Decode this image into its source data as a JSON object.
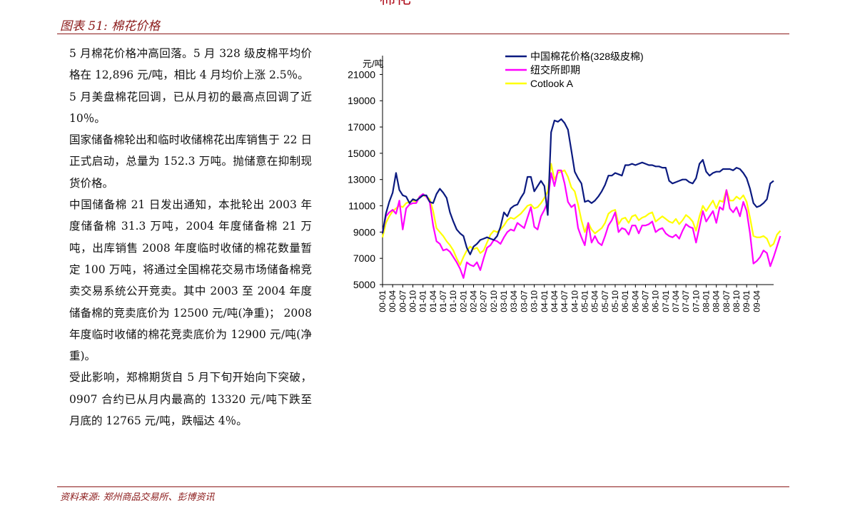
{
  "header_clip": "棉花",
  "figure_title": "图表 51:  棉花价格",
  "source": "资料来源:  郑州商品交易所、彭博资讯",
  "paragraphs": [
    "5 月棉花价格冲高回落。5 月 328 级皮棉平均价格在 12,896 元/吨，相比 4 月均价上涨 2.5％。",
    "5 月美盘棉花回调，已从月初的最高点回调了近 10％。",
    "国家储备棉轮出和临时收储棉花出库销售于 22 日正式启动，总量为 152.3 万吨。抛储意在抑制现货价格。",
    "中国储备棉 21 日发出通知，本批轮出 2003 年度储备棉 31.3 万吨，2004 年度储备棉 21 万吨，出库销售 2008 年度临时收储的棉花数量暂定 100 万吨，将通过全国棉花交易市场储备棉竞卖交易系统公开竞卖。其中 2003 至 2004 年度储备棉的竞卖底价为 12500 元/吨(净重)； 2008 年度临时收储的棉花竞卖底价为 12900 元/吨(净重)。",
    "受此影响，郑棉期货自 5 月下旬开始向下突破，0907 合约已从月内最高的 13320 元/吨下跌至月底的 12765 元/吨，跌幅达 4％。"
  ],
  "chart_data": {
    "type": "line",
    "ylabel": "元/吨",
    "xlabel": "",
    "ylim": [
      5000,
      22000
    ],
    "yticks": [
      5000,
      7000,
      9000,
      11000,
      13000,
      15000,
      17000,
      19000,
      21000
    ],
    "x_tick_labels": [
      "00-01",
      "00-04",
      "00-07",
      "00-10",
      "01-01",
      "01-04",
      "01-07",
      "01-10",
      "02-01",
      "02-04",
      "02-07",
      "02-10",
      "03-01",
      "03-04",
      "03-07",
      "03-10",
      "04-01",
      "04-04",
      "04-07",
      "04-10",
      "05-01",
      "05-04",
      "05-07",
      "05-10",
      "06-01",
      "06-04",
      "06-07",
      "06-10",
      "07-01",
      "07-04",
      "07-07",
      "07-10",
      "08-01",
      "08-04",
      "08-07",
      "08-10",
      "09-01",
      "09-04"
    ],
    "x_start": "2000-01",
    "x_end": "2009-05",
    "grid": false,
    "legend_position": "top",
    "series": [
      {
        "name": "中国棉花价格(328级皮棉)",
        "color": "#0b1a80",
        "values": [
          8900,
          10400,
          11300,
          12000,
          13500,
          12200,
          11800,
          11700,
          11200,
          11500,
          11400,
          11600,
          11800,
          11800,
          11300,
          11200,
          11900,
          12300,
          12000,
          11600,
          10500,
          9800,
          9200,
          8900,
          8700,
          7800,
          7300,
          7900,
          8100,
          8400,
          8500,
          8600,
          8500,
          8400,
          8700,
          9400,
          10500,
          10200,
          10800,
          11000,
          11100,
          11600,
          12000,
          13200,
          13200,
          12100,
          12500,
          12900,
          12500,
          10300,
          16600,
          17500,
          17400,
          17600,
          17300,
          16800,
          15200,
          13600,
          13100,
          12700,
          11300,
          11400,
          11200,
          11400,
          11700,
          12100,
          12600,
          13300,
          13300,
          13500,
          13400,
          13300,
          14100,
          14100,
          14200,
          14100,
          14200,
          14300,
          14200,
          14100,
          14100,
          14000,
          14000,
          13900,
          13900,
          12900,
          12700,
          12800,
          12900,
          13000,
          13000,
          12800,
          12700,
          13100,
          14200,
          14500,
          13600,
          13300,
          13500,
          13600,
          13600,
          13800,
          13800,
          13800,
          13700,
          13900,
          13800,
          13500,
          13100,
          12300,
          11200,
          10900,
          11000,
          11200,
          11500,
          12700,
          12900
        ]
      },
      {
        "name": "纽交所即期",
        "color": "#ff00ff",
        "values": [
          9000,
          10200,
          10500,
          10700,
          10400,
          11400,
          9200,
          10800,
          11100,
          11200,
          11200,
          11700,
          11900,
          11700,
          11300,
          9500,
          8300,
          8100,
          7600,
          7700,
          7500,
          7100,
          6700,
          6200,
          5500,
          6700,
          6500,
          6400,
          6700,
          6100,
          7000,
          7800,
          8000,
          8400,
          8300,
          8100,
          8600,
          9000,
          9200,
          9100,
          9700,
          9500,
          9300,
          10100,
          10900,
          9400,
          9200,
          10200,
          10700,
          11300,
          13500,
          12500,
          13700,
          13700,
          12700,
          11300,
          10900,
          11100,
          9300,
          8600,
          8000,
          9700,
          8200,
          8700,
          8200,
          8000,
          8700,
          9500,
          9900,
          10500,
          9000,
          9300,
          9200,
          8800,
          9500,
          9500,
          8900,
          9500,
          9500,
          9600,
          9800,
          9000,
          9200,
          9300,
          8900,
          8700,
          8600,
          8800,
          8500,
          9100,
          9600,
          9400,
          9300,
          8200,
          9400,
          10600,
          9800,
          10200,
          10600,
          9700,
          10900,
          10700,
          12200,
          10800,
          10500,
          10900,
          10200,
          11300,
          10600,
          8900,
          6600,
          6800,
          7100,
          7600,
          7400,
          6400,
          7100,
          7900,
          8700
        ]
      },
      {
        "name": "Cotlook A",
        "color": "#ffff00",
        "values": [
          8600,
          9700,
          10200,
          10600,
          10800,
          11000,
          10900,
          11200,
          11300,
          11400,
          11300,
          11700,
          11800,
          11700,
          11500,
          10600,
          9300,
          9000,
          8700,
          8300,
          8000,
          7600,
          7000,
          6500,
          7100,
          7600,
          7900,
          7700,
          7800,
          7400,
          7600,
          8200,
          8800,
          9100,
          9000,
          9200,
          9500,
          9900,
          10100,
          10000,
          10200,
          10400,
          10700,
          11000,
          11100,
          10800,
          10900,
          11200,
          11600,
          12100,
          14200,
          13000,
          13500,
          13600,
          13700,
          13200,
          12400,
          12100,
          11100,
          9900,
          9000,
          9700,
          9200,
          8900,
          9100,
          9300,
          9700,
          10400,
          10600,
          10700,
          9600,
          10000,
          10100,
          9700,
          10200,
          10300,
          9900,
          10100,
          10200,
          10400,
          10500,
          9800,
          10000,
          10200,
          10000,
          9800,
          9700,
          10000,
          9600,
          9900,
          10300,
          10100,
          9800,
          9100,
          10200,
          11000,
          10600,
          11000,
          11400,
          10800,
          11400,
          11300,
          12200,
          11400,
          11400,
          11700,
          11500,
          11800,
          11300,
          10100,
          8700,
          8600,
          8600,
          8700,
          8500,
          7900,
          8100,
          8800,
          9100
        ]
      }
    ]
  }
}
